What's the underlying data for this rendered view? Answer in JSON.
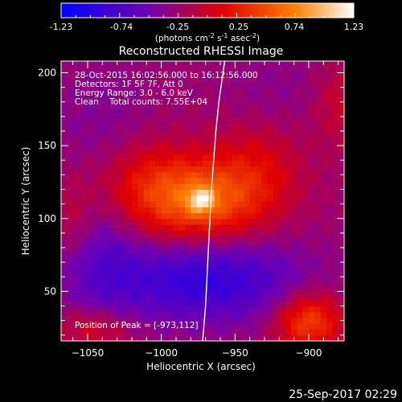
{
  "colorbar": {
    "tick_labels": [
      "-1.23",
      "-0.74",
      "-0.25",
      "0.25",
      "0.74",
      "1.23"
    ],
    "units_text": "(photons cm",
    "units_exp1": "-2",
    "units_mid": " s",
    "units_exp2": "-1",
    "units_mid2": " asec",
    "units_exp3": "-2",
    "units_end": ")"
  },
  "chart_data": {
    "type": "heatmap",
    "title": "Reconstructed RHESSI Image",
    "xlabel": "Heliocentric X (arcsec)",
    "ylabel": "Heliocentric Y (arcsec)",
    "xlim": [
      -1068,
      -876
    ],
    "ylim": [
      16,
      208
    ],
    "x_ticks": [
      -1050,
      -1000,
      -950,
      -900
    ],
    "x_tick_labels": [
      "−1050",
      "−1000",
      "−950",
      "−900"
    ],
    "y_ticks": [
      50,
      100,
      150,
      200
    ],
    "y_tick_labels": [
      "50",
      "100",
      "150",
      "200"
    ],
    "color_range": [
      -1.23,
      1.23
    ],
    "colormap": [
      "#0000ff",
      "#7000b0",
      "#e00000",
      "#ff8000",
      "#ffffff"
    ],
    "peak": [
      -973,
      112
    ],
    "components": [
      {
        "x": -973,
        "y": 112,
        "amp": 0.75,
        "sx": 30,
        "sy": 20
      },
      {
        "x": -1010,
        "y": 125,
        "amp": 0.35,
        "sx": 25,
        "sy": 22
      },
      {
        "x": -935,
        "y": 135,
        "amp": 0.3,
        "sx": 22,
        "sy": 22
      },
      {
        "x": -973,
        "y": 113,
        "amp": 0.65,
        "sx": 6,
        "sy": 6
      },
      {
        "x": -970,
        "y": 58,
        "amp": -0.65,
        "sx": 45,
        "sy": 20
      },
      {
        "x": -1040,
        "y": 70,
        "amp": -0.3,
        "sx": 20,
        "sy": 30
      },
      {
        "x": -900,
        "y": 30,
        "amp": 0.7,
        "sx": 16,
        "sy": 14
      },
      {
        "x": -1045,
        "y": 25,
        "amp": 0.35,
        "sx": 18,
        "sy": 10
      },
      {
        "x": -1060,
        "y": 100,
        "amp": 0.2,
        "sx": 10,
        "sy": 20
      },
      {
        "x": -880,
        "y": 180,
        "amp": 0.25,
        "sx": 12,
        "sy": 20
      },
      {
        "x": -1040,
        "y": 165,
        "amp": -0.15,
        "sx": 25,
        "sy": 30
      },
      {
        "x": -920,
        "y": 190,
        "amp": -0.1,
        "sx": 30,
        "sy": 20
      }
    ],
    "limb": [
      [
        -957,
        208
      ],
      [
        -961,
        180
      ],
      [
        -963,
        160
      ],
      [
        -966,
        120
      ],
      [
        -968,
        80
      ],
      [
        -970,
        40
      ],
      [
        -972,
        16
      ]
    ],
    "annotations": [
      "28-Oct-2015 16:02:56.000 to 16:12:56.000",
      "Detectors: 1F 5F 7F, Att 0",
      "Energy Range: 3.0 - 6.0 keV",
      "Clean    Total counts: 7.55E+04"
    ],
    "peak_label": "Position of Peak = [-973,112]"
  },
  "timestamp": "25-Sep-2017 02:29"
}
